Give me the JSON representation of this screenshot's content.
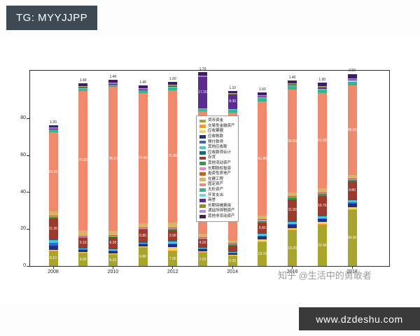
{
  "badges": {
    "tg_label": "TG: MYYJJPP",
    "site_label": "www.dzdeshu.com"
  },
  "watermark": "知乎 @生活中的勇敢者",
  "chart_data": {
    "type": "bar",
    "stacked": true,
    "title": "",
    "xlabel": "",
    "ylabel": "",
    "grid": false,
    "legend_position": "center",
    "categories": [
      "2008",
      "2009",
      "2010",
      "2011",
      "2012",
      "2013",
      "2014",
      "2015",
      "2016",
      "2017",
      "2018"
    ],
    "x_ticks_shown": [
      "2008",
      "2010",
      "2012",
      "2014",
      "2016",
      "2018"
    ],
    "y_ticks": [
      0,
      20,
      40,
      60,
      80
    ],
    "ylim": [
      0,
      106
    ],
    "series": [
      {
        "name": "货币资金",
        "color": "#a8a42c",
        "values": [
          8.1,
          6.9,
          6.2,
          9.8,
          7.9,
          7.2,
          5.3,
          13.1,
          19.2,
          22.4,
          30.3
        ]
      },
      {
        "name": "交易性金融资产",
        "color": "#f59b2d",
        "values": [
          0.3,
          0.3,
          0.3,
          0.3,
          0.3,
          0.3,
          0.3,
          0.3,
          0.5,
          0.5,
          0.5
        ]
      },
      {
        "name": "应收票据",
        "color": "#f3d06a",
        "values": [
          0.5,
          0.5,
          0.5,
          0.5,
          2.1,
          0.5,
          0.5,
          1.0,
          1.0,
          1.1,
          1.2
        ]
      },
      {
        "name": "应收账款",
        "color": "#20337a",
        "values": [
          2.1,
          1.0,
          1.0,
          1.1,
          1.4,
          1.0,
          0.9,
          1.5,
          1.6,
          1.5,
          2.0
        ]
      },
      {
        "name": "预付款项",
        "color": "#3a62d8",
        "values": [
          1.4,
          0.5,
          0.5,
          0.5,
          0.5,
          0.5,
          0.4,
          0.5,
          0.6,
          0.5,
          0.6
        ]
      },
      {
        "name": "其他应收款",
        "color": "#45c5dd",
        "values": [
          1.5,
          0.5,
          0.6,
          0.5,
          1.0,
          0.5,
          0.4,
          1.0,
          1.1,
          1.0,
          1.1
        ]
      },
      {
        "name": "应收款项合计",
        "color": "#16697a",
        "values": [
          0.5,
          0.3,
          0.3,
          0.3,
          0.3,
          0.3,
          0.3,
          0.3,
          0.3,
          0.3,
          0.3
        ]
      },
      {
        "name": "存货",
        "color": "#9c3a2e",
        "values": [
          11.3,
          5.1,
          6.2,
          6.8,
          5.9,
          4.2,
          3.1,
          5.8,
          11.9,
          10.7,
          9.8
        ]
      },
      {
        "name": "其他流动资产",
        "color": "#2f9e44",
        "values": [
          1.0,
          0.5,
          0.5,
          0.5,
          0.6,
          0.5,
          0.5,
          1.0,
          1.0,
          1.1,
          1.0
        ]
      },
      {
        "name": "长期股权投资",
        "color": "#e78ac3",
        "values": [
          0.5,
          0.4,
          0.4,
          0.4,
          0.5,
          0.4,
          0.4,
          0.5,
          0.5,
          0.5,
          0.5
        ]
      },
      {
        "name": "投资性房地产",
        "color": "#c7641e",
        "values": [
          0.3,
          0.3,
          0.3,
          0.3,
          0.3,
          0.3,
          0.3,
          0.3,
          0.3,
          0.3,
          0.3
        ]
      },
      {
        "name": "在建工程",
        "color": "#d9b36a",
        "values": [
          2.0,
          3.1,
          2.2,
          2.0,
          2.8,
          1.8,
          1.2,
          2.1,
          2.0,
          2.2,
          1.9
        ]
      },
      {
        "name": "固定资产",
        "color": "#f08a6c",
        "values": [
          43.2,
          75.6,
          78.1,
          70.9,
          71.8,
          66.3,
          69.7,
          61.8,
          55.6,
          51.9,
          48.6
        ]
      },
      {
        "name": "无形资产",
        "color": "#37b58c",
        "values": [
          1.5,
          1.5,
          1.4,
          1.5,
          1.6,
          1.5,
          1.4,
          2.0,
          2.1,
          2.0,
          2.1
        ]
      },
      {
        "name": "开发支出",
        "color": "#6fd8e8",
        "values": [
          0.2,
          0.2,
          0.2,
          0.2,
          0.3,
          0.3,
          0.3,
          0.3,
          0.3,
          0.3,
          0.3
        ]
      },
      {
        "name": "商誉",
        "color": "#5b2d8e",
        "values": [
          0.2,
          0.2,
          0.2,
          0.2,
          0.5,
          17.2,
          8.3,
          0.5,
          0.5,
          0.5,
          0.5
        ]
      },
      {
        "name": "长期待摊费用",
        "color": "#8a8f2a",
        "values": [
          0.3,
          0.3,
          0.3,
          0.3,
          0.3,
          0.3,
          0.3,
          0.3,
          0.3,
          0.3,
          0.3
        ]
      },
      {
        "name": "递延所得税资产",
        "color": "#b68cd9",
        "values": [
          0.4,
          0.4,
          0.4,
          0.4,
          0.4,
          0.4,
          0.4,
          0.4,
          0.4,
          0.4,
          0.4
        ]
      },
      {
        "name": "其他非流动资产",
        "color": "#3d1f66",
        "values": [
          1.2,
          1.4,
          1.4,
          1.4,
          1.6,
          1.7,
          1.1,
          1.6,
          1.4,
          1.9,
          2.6
        ]
      }
    ]
  }
}
